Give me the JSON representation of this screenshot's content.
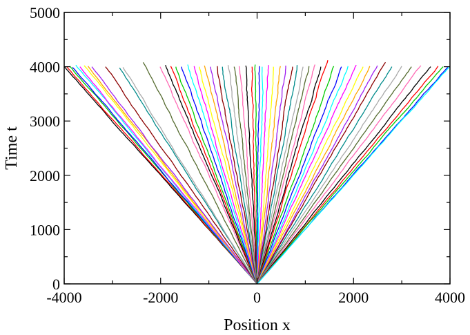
{
  "chart_data": {
    "type": "line",
    "title": "",
    "xlabel": "Position x",
    "ylabel": "Time t",
    "xlim": [
      -4000,
      4000
    ],
    "ylim": [
      0,
      5000
    ],
    "xticks": {
      "major": [
        -4000,
        -2000,
        0,
        2000,
        4000
      ],
      "major_labels": [
        "-4000",
        "-2000",
        "0",
        "2000",
        "4000"
      ],
      "minor_step": 1000
    },
    "yticks": {
      "major": [
        0,
        1000,
        2000,
        3000,
        4000,
        5000
      ],
      "major_labels": [
        "0",
        "1000",
        "2000",
        "3000",
        "4000",
        "5000"
      ],
      "minor_step": 500
    },
    "grid": false,
    "legend": "none",
    "description_of_series": "Trajectories of many random walkers starting at x=0, t=0; each drifts ballistically with its own velocity and ends near t≈4000.",
    "series_colors": [
      "#000000",
      "#ff0000",
      "#00cc00",
      "#0000ff",
      "#00ffff",
      "#ff00ff",
      "#ffff00",
      "#ffa500",
      "#a020f0",
      "#8b0000",
      "#008b8b",
      "#aaaaaa",
      "#556b2f",
      "#ff69b4"
    ],
    "series": [
      {
        "x": [
          0,
          -4000
        ],
        "y": [
          0,
          4000
        ]
      },
      {
        "x": [
          0,
          -3950
        ],
        "y": [
          0,
          4000
        ]
      },
      {
        "x": [
          0,
          -3880
        ],
        "y": [
          0,
          4010
        ]
      },
      {
        "x": [
          0,
          -3820
        ],
        "y": [
          0,
          3990
        ]
      },
      {
        "x": [
          0,
          -3750
        ],
        "y": [
          0,
          4030
        ]
      },
      {
        "x": [
          0,
          -3680
        ],
        "y": [
          0,
          4000
        ]
      },
      {
        "x": [
          0,
          -3580
        ],
        "y": [
          0,
          4020
        ]
      },
      {
        "x": [
          0,
          -3500
        ],
        "y": [
          0,
          4010
        ]
      },
      {
        "x": [
          0,
          -3420
        ],
        "y": [
          0,
          4000
        ]
      },
      {
        "x": [
          0,
          -3150
        ],
        "y": [
          0,
          4000
        ]
      },
      {
        "x": [
          0,
          -2850
        ],
        "y": [
          0,
          3980
        ]
      },
      {
        "x": [
          0,
          -2780
        ],
        "y": [
          0,
          3990
        ]
      },
      {
        "x": [
          0,
          -2350
        ],
        "y": [
          0,
          4080
        ]
      },
      {
        "x": [
          0,
          -2000
        ],
        "y": [
          0,
          4000
        ]
      },
      {
        "x": [
          0,
          -1900
        ],
        "y": [
          0,
          4030
        ]
      },
      {
        "x": [
          0,
          -1800
        ],
        "y": [
          0,
          4010
        ]
      },
      {
        "x": [
          0,
          -1680
        ],
        "y": [
          0,
          4000
        ]
      },
      {
        "x": [
          0,
          -1560
        ],
        "y": [
          0,
          4000
        ]
      },
      {
        "x": [
          0,
          -1440
        ],
        "y": [
          0,
          4040
        ]
      },
      {
        "x": [
          0,
          -1320
        ],
        "y": [
          0,
          4010
        ]
      },
      {
        "x": [
          0,
          -1200
        ],
        "y": [
          0,
          4000
        ]
      },
      {
        "x": [
          0,
          -1080
        ],
        "y": [
          0,
          4020
        ]
      },
      {
        "x": [
          0,
          -960
        ],
        "y": [
          0,
          4000
        ]
      },
      {
        "x": [
          0,
          -840
        ],
        "y": [
          0,
          4010
        ]
      },
      {
        "x": [
          0,
          -720
        ],
        "y": [
          0,
          4000
        ]
      },
      {
        "x": [
          0,
          -600
        ],
        "y": [
          0,
          4030
        ]
      },
      {
        "x": [
          0,
          -480
        ],
        "y": [
          0,
          4000
        ]
      },
      {
        "x": [
          0,
          -360
        ],
        "y": [
          0,
          4010
        ]
      },
      {
        "x": [
          0,
          -240
        ],
        "y": [
          0,
          4020
        ]
      },
      {
        "x": [
          0,
          -120
        ],
        "y": [
          0,
          4000
        ]
      },
      {
        "x": [
          0,
          -40
        ],
        "y": [
          0,
          4040
        ]
      },
      {
        "x": [
          0,
          40
        ],
        "y": [
          0,
          4010
        ]
      },
      {
        "x": [
          0,
          120
        ],
        "y": [
          0,
          4000
        ]
      },
      {
        "x": [
          0,
          240
        ],
        "y": [
          0,
          4030
        ]
      },
      {
        "x": [
          0,
          360
        ],
        "y": [
          0,
          4000
        ]
      },
      {
        "x": [
          0,
          480
        ],
        "y": [
          0,
          4010
        ]
      },
      {
        "x": [
          0,
          600
        ],
        "y": [
          0,
          4020
        ]
      },
      {
        "x": [
          0,
          720
        ],
        "y": [
          0,
          4000
        ]
      },
      {
        "x": [
          0,
          840
        ],
        "y": [
          0,
          4030
        ]
      },
      {
        "x": [
          0,
          960
        ],
        "y": [
          0,
          4000
        ]
      },
      {
        "x": [
          0,
          1080
        ],
        "y": [
          0,
          4010
        ]
      },
      {
        "x": [
          0,
          1200
        ],
        "y": [
          0,
          4040
        ]
      },
      {
        "x": [
          0,
          1320
        ],
        "y": [
          0,
          4000
        ]
      },
      {
        "x": [
          0,
          1450
        ],
        "y": [
          0,
          4120
        ]
      },
      {
        "x": [
          0,
          1600
        ],
        "y": [
          0,
          4010
        ]
      },
      {
        "x": [
          0,
          1750
        ],
        "y": [
          0,
          4000
        ]
      },
      {
        "x": [
          0,
          1900
        ],
        "y": [
          0,
          4010
        ]
      },
      {
        "x": [
          0,
          2050
        ],
        "y": [
          0,
          4030
        ]
      },
      {
        "x": [
          0,
          2200
        ],
        "y": [
          0,
          4000
        ]
      },
      {
        "x": [
          0,
          2350
        ],
        "y": [
          0,
          4010
        ]
      },
      {
        "x": [
          0,
          2500
        ],
        "y": [
          0,
          4020
        ]
      },
      {
        "x": [
          0,
          2650
        ],
        "y": [
          0,
          4080
        ]
      },
      {
        "x": [
          0,
          2800
        ],
        "y": [
          0,
          4000
        ]
      },
      {
        "x": [
          0,
          3000
        ],
        "y": [
          0,
          4010
        ]
      },
      {
        "x": [
          0,
          3200
        ],
        "y": [
          0,
          4000
        ]
      },
      {
        "x": [
          0,
          3400
        ],
        "y": [
          0,
          4020
        ]
      },
      {
        "x": [
          0,
          3600
        ],
        "y": [
          0,
          4000
        ]
      },
      {
        "x": [
          0,
          3750
        ],
        "y": [
          0,
          4010
        ]
      },
      {
        "x": [
          0,
          3850
        ],
        "y": [
          0,
          4000
        ]
      },
      {
        "x": [
          0,
          3950
        ],
        "y": [
          0,
          3990
        ]
      },
      {
        "x": [
          0,
          4000
        ],
        "y": [
          0,
          4000
        ]
      }
    ]
  }
}
